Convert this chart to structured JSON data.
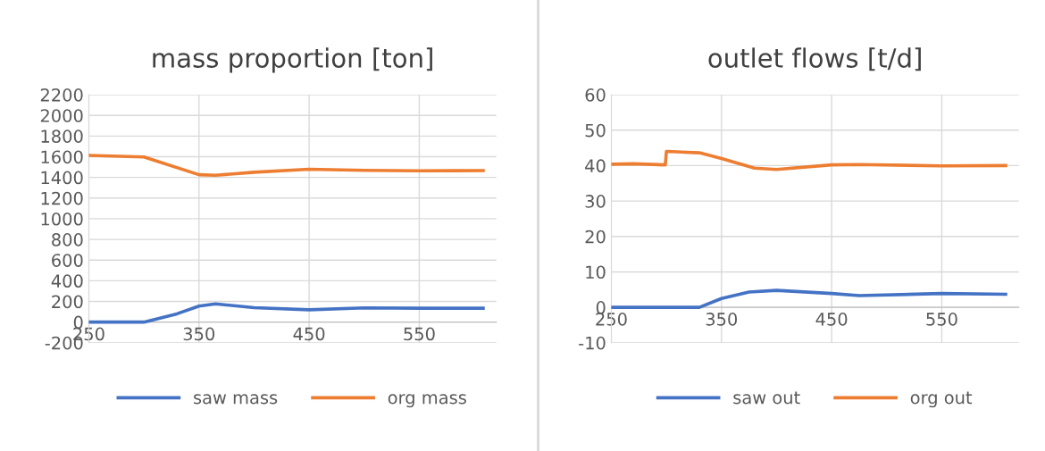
{
  "chart_data": [
    {
      "type": "line",
      "title": "mass proportion [ton]",
      "xlim": [
        250,
        620
      ],
      "xticks": [
        250,
        350,
        450,
        550
      ],
      "ylim": [
        -200,
        2200
      ],
      "yticks": [
        -200,
        0,
        200,
        400,
        600,
        800,
        1000,
        1200,
        1400,
        1600,
        1800,
        2000,
        2200
      ],
      "grid": true,
      "legend": "bottom",
      "marker": "none",
      "line_style": "solid",
      "series": [
        {
          "name": "saw mass",
          "color": "#4472c4",
          "x": [
            250,
            300,
            330,
            350,
            365,
            400,
            450,
            500,
            550,
            608
          ],
          "values": [
            0,
            0,
            80,
            155,
            176,
            140,
            119,
            137,
            134,
            134
          ]
        },
        {
          "name": "org mass",
          "color": "#ed7d31",
          "x": [
            250,
            300,
            350,
            365,
            400,
            450,
            500,
            550,
            608
          ],
          "values": [
            1613,
            1598,
            1426,
            1420,
            1450,
            1479,
            1468,
            1464,
            1466
          ]
        }
      ]
    },
    {
      "type": "line",
      "title": "outlet flows [t/d]",
      "xlim": [
        250,
        620
      ],
      "xticks": [
        250,
        350,
        450,
        550
      ],
      "ylim": [
        -10,
        60
      ],
      "yticks": [
        -10,
        0,
        10,
        20,
        30,
        40,
        50,
        60
      ],
      "grid": true,
      "legend": "bottom",
      "marker": "none",
      "line_style": "solid",
      "series": [
        {
          "name": "saw out",
          "color": "#4472c4",
          "x": [
            250,
            330,
            350,
            375,
            400,
            450,
            475,
            550,
            608
          ],
          "values": [
            0,
            0,
            2.5,
            4.3,
            4.8,
            3.9,
            3.3,
            3.9,
            3.7
          ]
        },
        {
          "name": "org out",
          "color": "#ed7d31",
          "x": [
            250,
            270,
            299,
            300,
            330,
            350,
            380,
            400,
            450,
            475,
            550,
            608
          ],
          "values": [
            40.4,
            40.5,
            40.2,
            44.0,
            43.6,
            42.0,
            39.3,
            38.9,
            40.2,
            40.3,
            39.9,
            40.0
          ]
        }
      ]
    }
  ]
}
